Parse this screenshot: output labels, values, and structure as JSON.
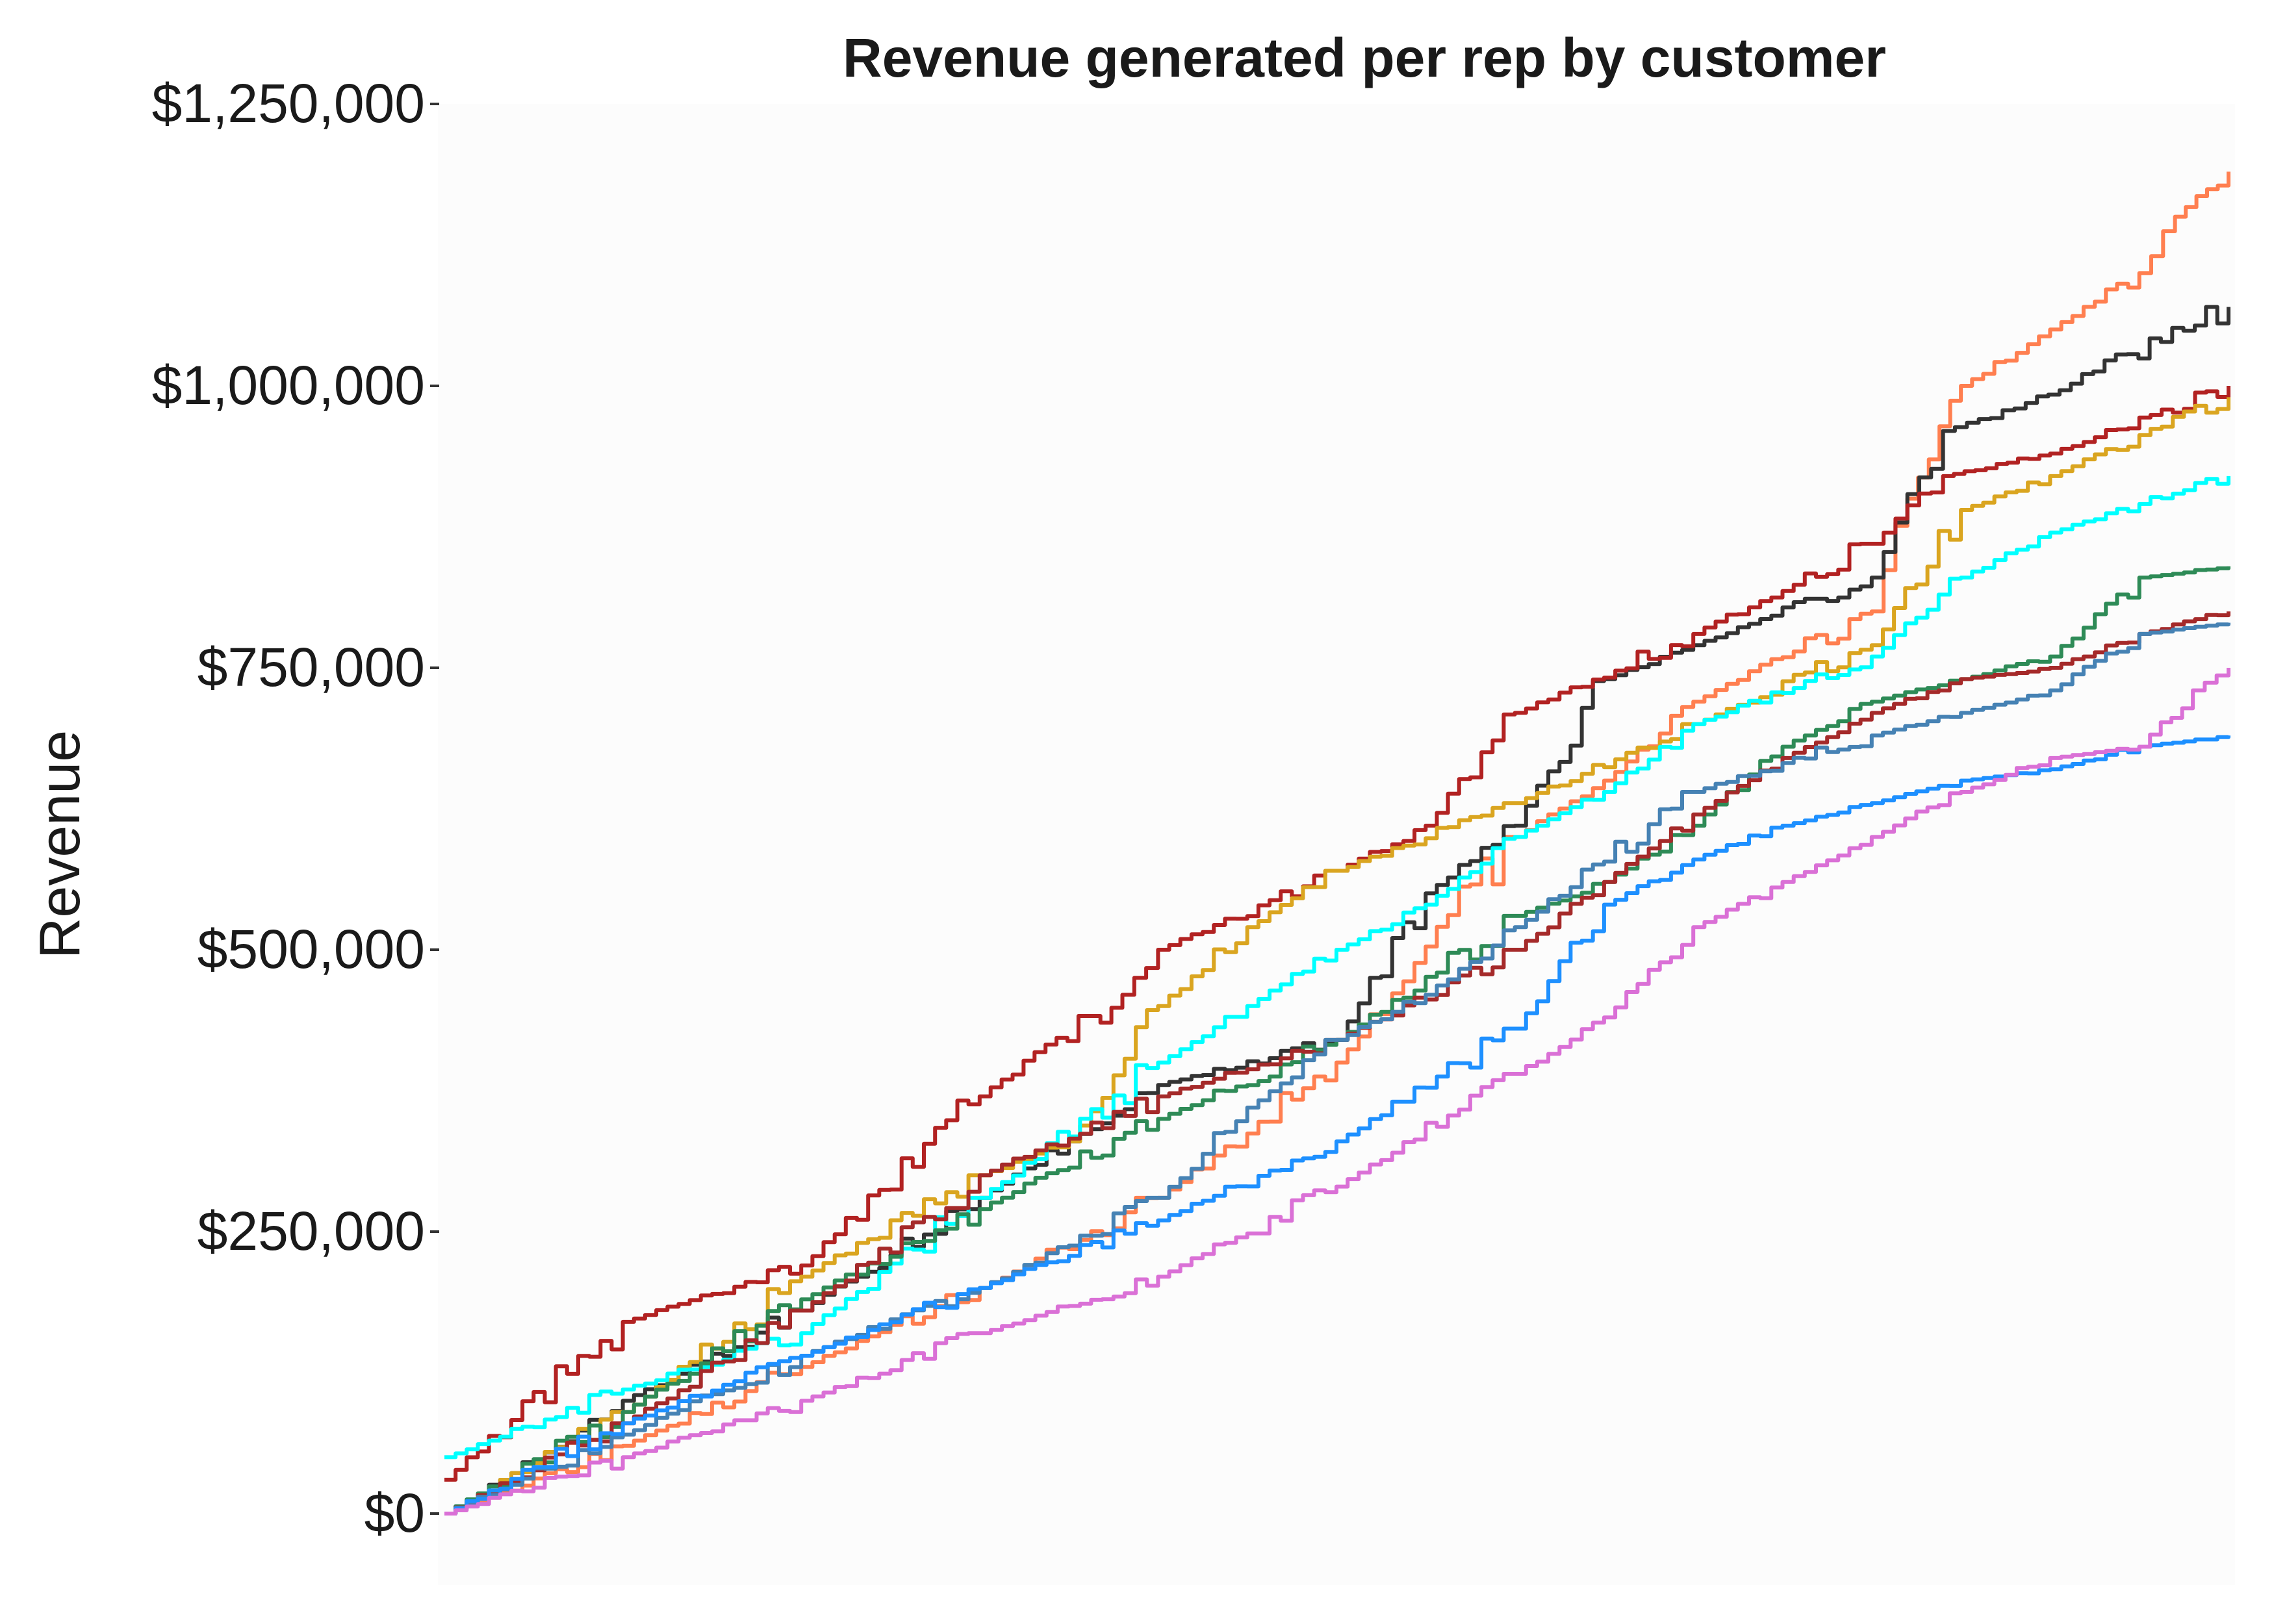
{
  "chart_data": {
    "type": "line",
    "title": "Revenue generated per rep by customer",
    "xlabel": "",
    "ylabel": "Revenue",
    "ylim": [
      0,
      1250000
    ],
    "xlim": [
      0,
      100
    ],
    "y_ticks": [
      {
        "value": 0,
        "label": "$0"
      },
      {
        "value": 250000,
        "label": "$250,000"
      },
      {
        "value": 500000,
        "label": "$500,000"
      },
      {
        "value": 750000,
        "label": "$750,000"
      },
      {
        "value": 1000000,
        "label": "$1,000,000"
      },
      {
        "value": 1250000,
        "label": "$1,250,000"
      }
    ],
    "grid": false,
    "legend": "none",
    "panel_background": "#fcfcfc",
    "series": [
      {
        "color": "#ff7f50",
        "x": [
          0,
          10,
          20,
          30,
          40,
          50,
          60,
          65,
          70,
          80,
          82,
          85,
          90,
          95,
          97,
          100
        ],
        "y": [
          0,
          60000,
          130000,
          200000,
          280000,
          400000,
          600000,
          650000,
          720000,
          800000,
          900000,
          1000000,
          1050000,
          1100000,
          1150000,
          1190000
        ]
      },
      {
        "color": "#333333",
        "x": [
          0,
          10,
          20,
          30,
          35,
          40,
          50,
          55,
          60,
          65,
          70,
          80,
          84,
          88,
          100
        ],
        "y": [
          0,
          100000,
          180000,
          280000,
          330000,
          380000,
          420000,
          550000,
          610000,
          740000,
          770000,
          830000,
          960000,
          980000,
          1070000
        ]
      },
      {
        "color": "#b22222",
        "x": [
          0,
          10,
          20,
          30,
          38,
          40,
          50,
          55,
          60,
          70,
          80,
          84,
          90,
          100
        ],
        "y": [
          30000,
          170000,
          220000,
          370000,
          460000,
          500000,
          570000,
          610000,
          710000,
          780000,
          860000,
          920000,
          940000,
          1000000
        ]
      },
      {
        "color": "#daa520",
        "x": [
          0,
          10,
          20,
          30,
          35,
          40,
          45,
          50,
          60,
          70,
          80,
          85,
          90,
          100
        ],
        "y": [
          0,
          90000,
          210000,
          300000,
          330000,
          450000,
          520000,
          570000,
          630000,
          700000,
          770000,
          890000,
          920000,
          990000
        ]
      },
      {
        "color": "#00ffff",
        "x": [
          0,
          10,
          20,
          30,
          40,
          45,
          50,
          55,
          60,
          65,
          70,
          80,
          85,
          90,
          100
        ],
        "y": [
          50000,
          110000,
          160000,
          280000,
          400000,
          450000,
          500000,
          540000,
          600000,
          640000,
          700000,
          760000,
          830000,
          870000,
          920000
        ]
      },
      {
        "color": "#2e8b57",
        "x": [
          0,
          10,
          20,
          30,
          40,
          50,
          60,
          65,
          70,
          75,
          80,
          85,
          90,
          95,
          100
        ],
        "y": [
          0,
          90000,
          190000,
          270000,
          350000,
          420000,
          530000,
          560000,
          610000,
          680000,
          720000,
          740000,
          760000,
          830000,
          840000
        ]
      },
      {
        "color": "#a52a2a",
        "x": [
          0,
          10,
          20,
          30,
          40,
          50,
          60,
          65,
          70,
          75,
          80,
          85,
          90,
          95,
          100
        ],
        "y": [
          0,
          80000,
          180000,
          300000,
          370000,
          420000,
          500000,
          560000,
          620000,
          670000,
          710000,
          740000,
          750000,
          780000,
          800000
        ]
      },
      {
        "color": "#4682b4",
        "x": [
          0,
          10,
          20,
          30,
          40,
          45,
          50,
          55,
          60,
          70,
          80,
          85,
          90,
          95,
          100
        ],
        "y": [
          0,
          70000,
          140000,
          200000,
          280000,
          360000,
          420000,
          460000,
          520000,
          640000,
          690000,
          710000,
          730000,
          780000,
          790000
        ]
      },
      {
        "color": "#1e90ff",
        "x": [
          0,
          10,
          20,
          30,
          40,
          50,
          60,
          65,
          70,
          75,
          80,
          85,
          90,
          95,
          100
        ],
        "y": [
          0,
          80000,
          140000,
          200000,
          260000,
          330000,
          430000,
          540000,
          580000,
          610000,
          630000,
          650000,
          660000,
          680000,
          690000
        ]
      },
      {
        "color": "#da70d6",
        "x": [
          0,
          10,
          20,
          30,
          40,
          50,
          60,
          65,
          70,
          75,
          80,
          85,
          90,
          95,
          98,
          100
        ],
        "y": [
          0,
          50000,
          100000,
          160000,
          210000,
          290000,
          390000,
          440000,
          520000,
          560000,
          600000,
          640000,
          670000,
          680000,
          730000,
          750000
        ]
      }
    ]
  }
}
